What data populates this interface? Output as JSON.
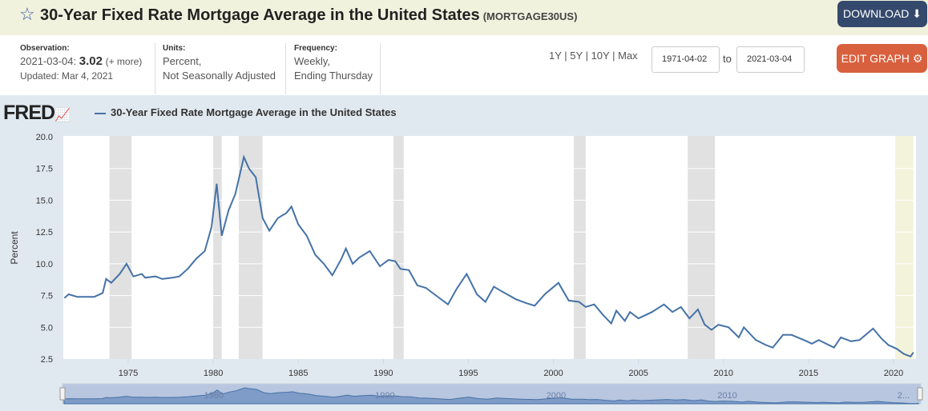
{
  "header": {
    "title": "30-Year Fixed Rate Mortgage Average in the United States",
    "series_id": "(MORTGAGE30US)",
    "download_label": "DOWNLOAD"
  },
  "meta": {
    "observation_label": "Observation:",
    "obs_date": "2021-03-04:",
    "obs_value": "3.02",
    "more": "(+ more)",
    "updated": "Updated: Mar 4, 2021",
    "units_label": "Units:",
    "units_1": "Percent,",
    "units_2": "Not Seasonally Adjusted",
    "freq_label": "Frequency:",
    "freq_1": "Weekly,",
    "freq_2": "Ending Thursday"
  },
  "controls": {
    "ranges": [
      "1Y",
      "5Y",
      "10Y",
      "Max"
    ],
    "start": "1971-04-02",
    "to": "to",
    "end": "2021-03-04",
    "edit_label": "EDIT GRAPH"
  },
  "logo": "FRED",
  "colors": {
    "line": "#4572a7",
    "recession": "#e1e1e1",
    "accent": "#d9603e"
  },
  "chart_data": {
    "type": "line",
    "title": "30-Year Fixed Rate Mortgage Average in the United States",
    "ylabel": "Percent",
    "xlabel": "",
    "ylim": [
      2.5,
      20
    ],
    "xlim": [
      1971.25,
      2021.17
    ],
    "yticks": [
      "2.5",
      "5.0",
      "7.5",
      "10.0",
      "12.5",
      "15.0",
      "17.5",
      "20.0"
    ],
    "xticks": [
      "1975",
      "1980",
      "1985",
      "1990",
      "1995",
      "2000",
      "2005",
      "2010",
      "2015",
      "2020"
    ],
    "navigator_labels": [
      "1980",
      "1990",
      "2000",
      "2010",
      "2..."
    ],
    "recessions": [
      [
        1973.9,
        1975.2
      ],
      [
        1980.0,
        1980.5
      ],
      [
        1981.5,
        1982.9
      ],
      [
        1990.6,
        1991.2
      ],
      [
        2001.2,
        2001.9
      ],
      [
        2007.9,
        2009.5
      ],
      [
        2020.1,
        2021.17
      ]
    ],
    "series": [
      {
        "name": "30-Year Fixed Rate Mortgage Average in the United States",
        "x": [
          1971.25,
          1971.5,
          1972,
          1972.5,
          1973,
          1973.5,
          1973.7,
          1974,
          1974.5,
          1974.9,
          1975.3,
          1975.8,
          1976,
          1976.6,
          1977,
          1977.6,
          1978,
          1978.5,
          1979,
          1979.5,
          1979.9,
          1980.2,
          1980.5,
          1980.9,
          1981.3,
          1981.8,
          1982.1,
          1982.5,
          1982.9,
          1983.3,
          1983.8,
          1984.3,
          1984.6,
          1985,
          1985.5,
          1986,
          1986.5,
          1987,
          1987.5,
          1987.8,
          1988.2,
          1988.6,
          1989.2,
          1989.8,
          1990.3,
          1990.7,
          1991,
          1991.5,
          1992,
          1992.5,
          1993,
          1993.8,
          1994.3,
          1994.9,
          1995.5,
          1996,
          1996.5,
          1997,
          1997.8,
          1998.4,
          1998.9,
          1999.5,
          2000.3,
          2000.9,
          2001.5,
          2001.9,
          2002.4,
          2002.9,
          2003.4,
          2003.7,
          2004.2,
          2004.5,
          2005,
          2005.8,
          2006.5,
          2007,
          2007.5,
          2008,
          2008.5,
          2008.9,
          2009.3,
          2009.7,
          2010.3,
          2010.9,
          2011.2,
          2011.9,
          2012.5,
          2012.9,
          2013.5,
          2014,
          2014.9,
          2015.2,
          2015.6,
          2016.5,
          2016.9,
          2017.5,
          2018,
          2018.8,
          2019.3,
          2019.7,
          2020.2,
          2020.6,
          2021,
          2021.17
        ],
        "values": [
          7.3,
          7.6,
          7.4,
          7.4,
          7.4,
          7.7,
          8.8,
          8.5,
          9.2,
          10.0,
          9.0,
          9.2,
          8.9,
          9.0,
          8.8,
          8.9,
          9.0,
          9.6,
          10.4,
          11.0,
          12.9,
          16.3,
          12.2,
          14.2,
          15.5,
          18.4,
          17.5,
          16.8,
          13.6,
          12.6,
          13.6,
          14.0,
          14.5,
          13.1,
          12.2,
          10.7,
          10.0,
          9.1,
          10.3,
          11.2,
          10.0,
          10.5,
          11.0,
          9.8,
          10.3,
          10.2,
          9.6,
          9.5,
          8.3,
          8.1,
          7.6,
          6.8,
          8.0,
          9.2,
          7.6,
          7.0,
          8.2,
          7.8,
          7.2,
          6.9,
          6.7,
          7.6,
          8.5,
          7.1,
          7.0,
          6.6,
          6.8,
          6.0,
          5.3,
          6.3,
          5.5,
          6.2,
          5.7,
          6.2,
          6.8,
          6.2,
          6.6,
          5.7,
          6.4,
          5.2,
          4.8,
          5.2,
          5.0,
          4.2,
          5.0,
          4.0,
          3.6,
          3.4,
          4.4,
          4.4,
          3.9,
          3.7,
          4.0,
          3.4,
          4.2,
          3.9,
          4.0,
          4.9,
          4.1,
          3.6,
          3.3,
          2.9,
          2.7,
          3.02
        ]
      }
    ]
  }
}
